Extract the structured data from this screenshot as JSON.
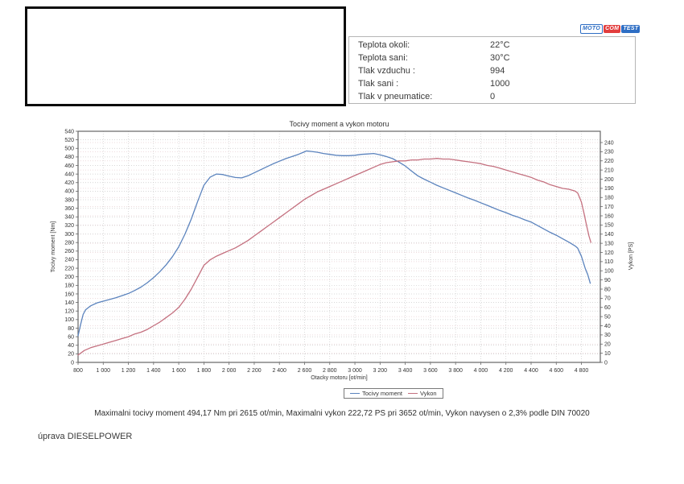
{
  "logo": {
    "moto": "MOTO",
    "com": "COM",
    "test": "TEST",
    "blue": "#2e6ec4",
    "red": "#e23d3d"
  },
  "info_table": {
    "rows": [
      {
        "label": "Teplota okoli:",
        "value": "22°C"
      },
      {
        "label": "Teplota sani:",
        "value": "30°C"
      },
      {
        "label": "Tlak vzduchu :",
        "value": "994"
      },
      {
        "label": "Tlak sani :",
        "value": "1000"
      },
      {
        "label": "Tlak v pneumatice:",
        "value": "0"
      }
    ]
  },
  "chart_data": {
    "type": "line",
    "title": "Tocivy moment a vykon motoru",
    "xlabel": "Otacky motoru [ot/min]",
    "ylabel_left": "Tocivy moment [Nm]",
    "ylabel_right": "Vykon [PS]",
    "x_range": [
      800,
      4950
    ],
    "x_ticks": [
      800,
      1000,
      1200,
      1400,
      1600,
      1800,
      2000,
      2200,
      2400,
      2600,
      2800,
      3000,
      3200,
      3400,
      3600,
      3800,
      4000,
      4200,
      4400,
      4600,
      4800
    ],
    "x_tick_labels": [
      "800",
      "1 000",
      "1 200",
      "1 400",
      "1 600",
      "1 800",
      "2 000",
      "2 200",
      "2 400",
      "2 600",
      "2 800",
      "3 000",
      "3 200",
      "3 400",
      "3 600",
      "3 800",
      "4 000",
      "4 200",
      "4 400",
      "4 600",
      "4 800"
    ],
    "y_left": {
      "min": 0,
      "max": 540,
      "step": 20
    },
    "y_right": {
      "min": 0,
      "max": 240,
      "step": 10
    },
    "grid": true,
    "grid_color": "#cbcbcb",
    "grid_color_right": "#e8d0d4",
    "border_color": "#666666",
    "text_color": "#333333",
    "legend_position": "bottom",
    "series": [
      {
        "name": "Tocivy moment",
        "axis": "left",
        "color": "#5b83bd",
        "points": [
          [
            800,
            62
          ],
          [
            820,
            88
          ],
          [
            840,
            112
          ],
          [
            860,
            123
          ],
          [
            900,
            132
          ],
          [
            950,
            139
          ],
          [
            1000,
            143
          ],
          [
            1050,
            147
          ],
          [
            1100,
            151
          ],
          [
            1150,
            156
          ],
          [
            1200,
            161
          ],
          [
            1250,
            168
          ],
          [
            1300,
            176
          ],
          [
            1350,
            186
          ],
          [
            1400,
            198
          ],
          [
            1450,
            212
          ],
          [
            1500,
            228
          ],
          [
            1550,
            247
          ],
          [
            1600,
            270
          ],
          [
            1650,
            300
          ],
          [
            1700,
            335
          ],
          [
            1750,
            376
          ],
          [
            1800,
            414
          ],
          [
            1850,
            433
          ],
          [
            1900,
            440
          ],
          [
            1950,
            439
          ],
          [
            2000,
            435
          ],
          [
            2050,
            432
          ],
          [
            2100,
            431
          ],
          [
            2150,
            436
          ],
          [
            2200,
            443
          ],
          [
            2250,
            450
          ],
          [
            2300,
            457
          ],
          [
            2350,
            464
          ],
          [
            2400,
            470
          ],
          [
            2450,
            476
          ],
          [
            2500,
            481
          ],
          [
            2550,
            486
          ],
          [
            2600,
            492
          ],
          [
            2615,
            494
          ],
          [
            2650,
            493
          ],
          [
            2700,
            491
          ],
          [
            2750,
            488
          ],
          [
            2800,
            486
          ],
          [
            2850,
            484
          ],
          [
            2900,
            483
          ],
          [
            2950,
            483
          ],
          [
            3000,
            484
          ],
          [
            3050,
            486
          ],
          [
            3100,
            487
          ],
          [
            3150,
            488
          ],
          [
            3200,
            485
          ],
          [
            3250,
            481
          ],
          [
            3300,
            476
          ],
          [
            3350,
            468
          ],
          [
            3400,
            459
          ],
          [
            3450,
            447
          ],
          [
            3500,
            436
          ],
          [
            3550,
            428
          ],
          [
            3600,
            421
          ],
          [
            3650,
            414
          ],
          [
            3700,
            408
          ],
          [
            3750,
            402
          ],
          [
            3800,
            396
          ],
          [
            3850,
            390
          ],
          [
            3900,
            384
          ],
          [
            3950,
            379
          ],
          [
            4000,
            373
          ],
          [
            4050,
            367
          ],
          [
            4100,
            361
          ],
          [
            4150,
            355
          ],
          [
            4200,
            350
          ],
          [
            4250,
            344
          ],
          [
            4300,
            339
          ],
          [
            4350,
            333
          ],
          [
            4400,
            328
          ],
          [
            4450,
            320
          ],
          [
            4500,
            312
          ],
          [
            4550,
            304
          ],
          [
            4600,
            297
          ],
          [
            4650,
            289
          ],
          [
            4700,
            281
          ],
          [
            4750,
            272
          ],
          [
            4770,
            267
          ],
          [
            4800,
            248
          ],
          [
            4830,
            220
          ],
          [
            4850,
            205
          ],
          [
            4870,
            185
          ]
        ]
      },
      {
        "name": "Vykon",
        "axis": "right",
        "color": "#c4707f",
        "points": [
          [
            800,
            8
          ],
          [
            850,
            13
          ],
          [
            900,
            16
          ],
          [
            950,
            18
          ],
          [
            1000,
            20
          ],
          [
            1050,
            22
          ],
          [
            1100,
            24
          ],
          [
            1150,
            26
          ],
          [
            1200,
            28
          ],
          [
            1250,
            31
          ],
          [
            1300,
            33
          ],
          [
            1350,
            36
          ],
          [
            1400,
            40
          ],
          [
            1450,
            44
          ],
          [
            1500,
            49
          ],
          [
            1550,
            54
          ],
          [
            1600,
            60
          ],
          [
            1650,
            69
          ],
          [
            1700,
            80
          ],
          [
            1750,
            93
          ],
          [
            1800,
            106
          ],
          [
            1850,
            112
          ],
          [
            1900,
            116
          ],
          [
            1950,
            119
          ],
          [
            2000,
            122
          ],
          [
            2050,
            125
          ],
          [
            2100,
            129
          ],
          [
            2150,
            133
          ],
          [
            2200,
            138
          ],
          [
            2250,
            143
          ],
          [
            2300,
            148
          ],
          [
            2350,
            153
          ],
          [
            2400,
            158
          ],
          [
            2450,
            163
          ],
          [
            2500,
            168
          ],
          [
            2550,
            173
          ],
          [
            2600,
            178
          ],
          [
            2650,
            182
          ],
          [
            2700,
            186
          ],
          [
            2750,
            189
          ],
          [
            2800,
            192
          ],
          [
            2850,
            195
          ],
          [
            2900,
            198
          ],
          [
            2950,
            201
          ],
          [
            3000,
            204
          ],
          [
            3050,
            207
          ],
          [
            3100,
            210
          ],
          [
            3150,
            213
          ],
          [
            3200,
            216
          ],
          [
            3250,
            218
          ],
          [
            3300,
            219
          ],
          [
            3350,
            220
          ],
          [
            3400,
            220
          ],
          [
            3450,
            221
          ],
          [
            3500,
            221
          ],
          [
            3550,
            222
          ],
          [
            3600,
            222
          ],
          [
            3652,
            222.7
          ],
          [
            3700,
            222
          ],
          [
            3750,
            222
          ],
          [
            3800,
            221
          ],
          [
            3850,
            220
          ],
          [
            3900,
            219
          ],
          [
            3950,
            218
          ],
          [
            4000,
            217
          ],
          [
            4050,
            215
          ],
          [
            4100,
            214
          ],
          [
            4150,
            212
          ],
          [
            4200,
            210
          ],
          [
            4250,
            208
          ],
          [
            4300,
            206
          ],
          [
            4350,
            204
          ],
          [
            4400,
            202
          ],
          [
            4450,
            199
          ],
          [
            4500,
            197
          ],
          [
            4550,
            194
          ],
          [
            4600,
            192
          ],
          [
            4650,
            190
          ],
          [
            4700,
            189
          ],
          [
            4750,
            187
          ],
          [
            4770,
            185
          ],
          [
            4800,
            175
          ],
          [
            4820,
            163
          ],
          [
            4840,
            150
          ],
          [
            4860,
            138
          ],
          [
            4875,
            131
          ]
        ]
      }
    ],
    "annotations": {
      "max_torque": "Maximalni tocivy moment 494,17 Nm pri 2615 ot/min",
      "max_power": "Maximalni vykon 222,72 PS pri 3652 ot/min",
      "correction": "Vykon navysen o 2,3% podle DIN 70020"
    }
  },
  "caption": "Maximalni tocivy moment 494,17 Nm pri 2615 ot/min,  Maximalni vykon 222,72 PS pri 3652 ot/min,  Vykon navysen o 2,3% podle DIN 70020",
  "footer": "úprava DIESELPOWER"
}
